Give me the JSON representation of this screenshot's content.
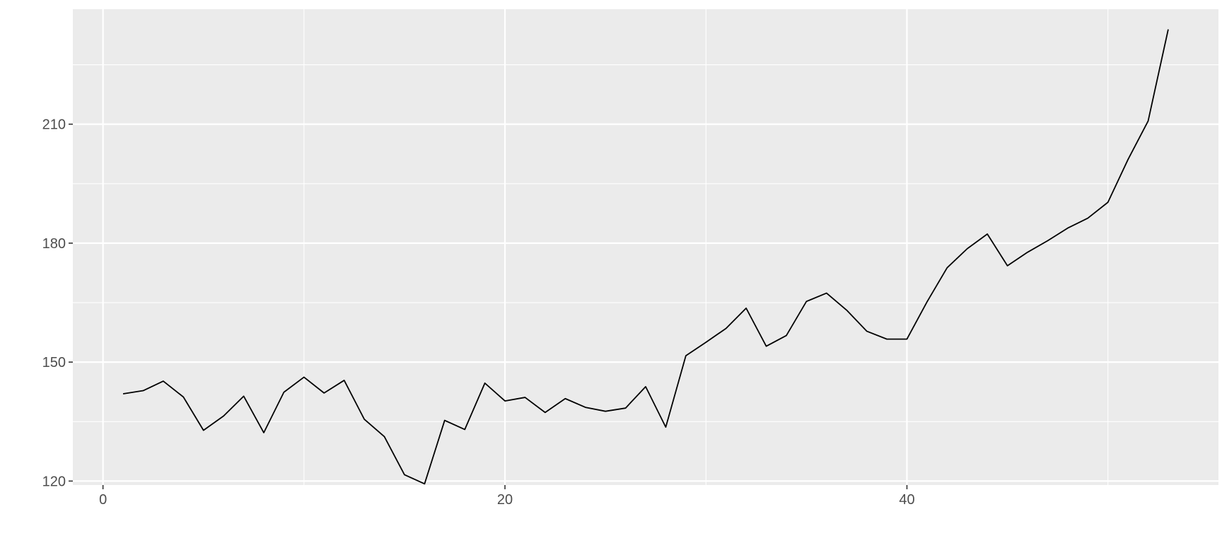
{
  "chart_data": {
    "type": "line",
    "title": "",
    "xlabel": "",
    "ylabel": "",
    "xlim": [
      -1.5,
      55.5
    ],
    "ylim": [
      119,
      239
    ],
    "x_ticks": [
      0,
      20,
      40
    ],
    "x_tick_labels": [
      "0",
      "20",
      "40"
    ],
    "y_ticks": [
      120,
      150,
      180,
      210
    ],
    "y_tick_labels": [
      "120",
      "150",
      "180",
      "210"
    ],
    "grid": true,
    "legend": "none",
    "colors": {
      "panel_background": "#ebebeb",
      "grid_line": "#ffffff",
      "series_line": "#000000",
      "tick_text": "#4d4d4d",
      "tick_mark": "#333333"
    },
    "series": [
      {
        "x": [
          1,
          2,
          3,
          4,
          5,
          6,
          7,
          8,
          9,
          10,
          11,
          12,
          13,
          14,
          15,
          16,
          17,
          18,
          19,
          20,
          21,
          22,
          23,
          24,
          25,
          26,
          27,
          28,
          29,
          30,
          31,
          32,
          33,
          34,
          35,
          36,
          37,
          38,
          39,
          40,
          41,
          42,
          43,
          44,
          45,
          46,
          47,
          48,
          49,
          50,
          51,
          52,
          53
        ],
        "values": [
          142,
          142.8,
          145.2,
          141.2,
          132.8,
          136.4,
          141.4,
          132.2,
          142.4,
          146.2,
          142.2,
          145.4,
          135.6,
          131.2,
          121.6,
          119.3,
          135.3,
          133,
          144.7,
          140.2,
          141.1,
          137.3,
          140.8,
          138.6,
          137.6,
          138.4,
          143.8,
          133.6,
          151.6,
          155,
          158.5,
          163.6,
          154,
          156.7,
          165.3,
          167.4,
          163.1,
          157.8,
          155.8,
          155.8,
          165.2,
          173.8,
          178.6,
          182.3,
          174.3,
          177.7,
          180.6,
          183.8,
          186.3,
          190.3,
          201.1,
          210.8,
          233.9
        ]
      }
    ]
  }
}
